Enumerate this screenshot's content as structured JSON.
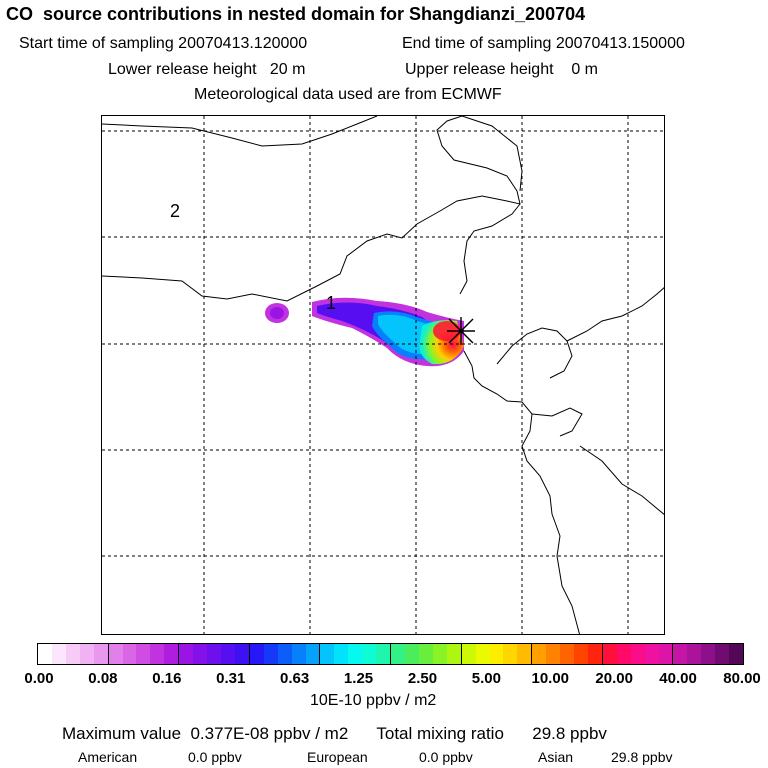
{
  "header": {
    "title": "CO  source contributions in nested domain for Shangdianzi_200704",
    "start_label": "Start time of sampling 20070413.120000",
    "end_label": "End time of sampling 20070413.150000",
    "lower_label": "Lower release height   20 m",
    "upper_label": "Upper release height    0 m",
    "met_label": "Meteorological data used are from ECMWF"
  },
  "map": {
    "region_labels": [
      "2",
      "1"
    ],
    "station_marker": "station-star"
  },
  "colorbar": {
    "ticks": [
      "0.00",
      "0.08",
      "0.16",
      "0.31",
      "0.63",
      "1.25",
      "2.50",
      "5.00",
      "10.00",
      "20.00",
      "40.00",
      "80.00"
    ],
    "colors": [
      "#ffffff",
      "#fbe6fb",
      "#f6ccf7",
      "#f0b2f3",
      "#ea98ef",
      "#e37fea",
      "#da66e6",
      "#cf4de3",
      "#c233e0",
      "#b01ddf",
      "#9b14e6",
      "#8511ea",
      "#6e10ee",
      "#570ff1",
      "#3e10f4",
      "#2618f7",
      "#1639f8",
      "#0c5dfa",
      "#0780fb",
      "#05a2fc",
      "#04c4fc",
      "#03e2fb",
      "#06f8f0",
      "#0efbd6",
      "#1ef6ad",
      "#33f184",
      "#4aed5c",
      "#67ef3c",
      "#8af325",
      "#adf612",
      "#cef906",
      "#ebf902",
      "#fdee00",
      "#ffd600",
      "#ffbb00",
      "#ff9f00",
      "#ff8200",
      "#ff6400",
      "#ff4400",
      "#ff2410",
      "#ff0f3c",
      "#ff0a68",
      "#fb0d8a",
      "#ef12a0",
      "#dc15a8",
      "#c515a6",
      "#ab139b",
      "#8e0f8a",
      "#700b72",
      "#520757"
    ],
    "units": "10E-10 ppbv / m2"
  },
  "summary": {
    "max_text": "Maximum value  0.377E-08 ppbv / m2",
    "total_text": "Total mixing ratio      29.8 ppbv",
    "regions": [
      {
        "name": "American",
        "value": "0.0 ppbv"
      },
      {
        "name": "European",
        "value": "0.0 ppbv"
      },
      {
        "name": "Asian",
        "value": "29.8 ppbv"
      }
    ]
  }
}
